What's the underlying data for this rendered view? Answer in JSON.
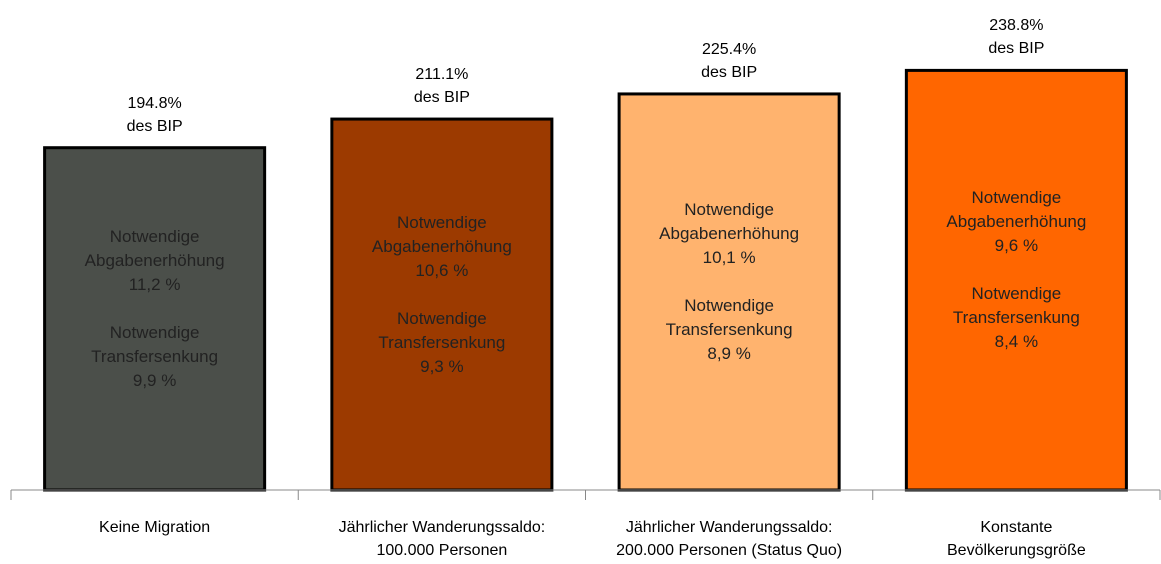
{
  "chart_data": {
    "type": "bar",
    "categories": [
      "Keine Migration",
      "Jährlicher Wanderungssaldo:\n100.000 Personen",
      "Jährlicher Wanderungssaldo:\n200.000 Personen (Status Quo)",
      "Konstante\nBevölkerungsgröße"
    ],
    "values": [
      194.8,
      211.1,
      225.4,
      238.8
    ],
    "value_labels": [
      "194.8%",
      "211.1%",
      "225.4%",
      "238.8%"
    ],
    "value_label_note": "des BIP",
    "colors": [
      "#4b4f4a",
      "#9c3a00",
      "#ffb36e",
      "#ff6600"
    ],
    "bar_texts": [
      [
        [
          "Notwendige",
          "Abgabenerhöhung",
          "11,2 %"
        ],
        [
          "Notwendige",
          "Transfersenkung",
          "9,9 %"
        ]
      ],
      [
        [
          "Notwendige",
          "Abgabenerhöhung",
          "10,6 %"
        ],
        [
          "Notwendige",
          "Transfersenkung",
          "9,3 %"
        ]
      ],
      [
        [
          "Notwendige",
          "Abgabenerhöhung",
          "10,1 %"
        ],
        [
          "Notwendige",
          "Transfersenkung",
          "8,9 %"
        ]
      ],
      [
        [
          "Notwendige",
          "Abgabenerhöhung",
          "9,6 %"
        ],
        [
          "Notwendige",
          "Transfersenkung",
          "8,4 %"
        ]
      ]
    ],
    "ylim": [
      0,
      280
    ]
  }
}
